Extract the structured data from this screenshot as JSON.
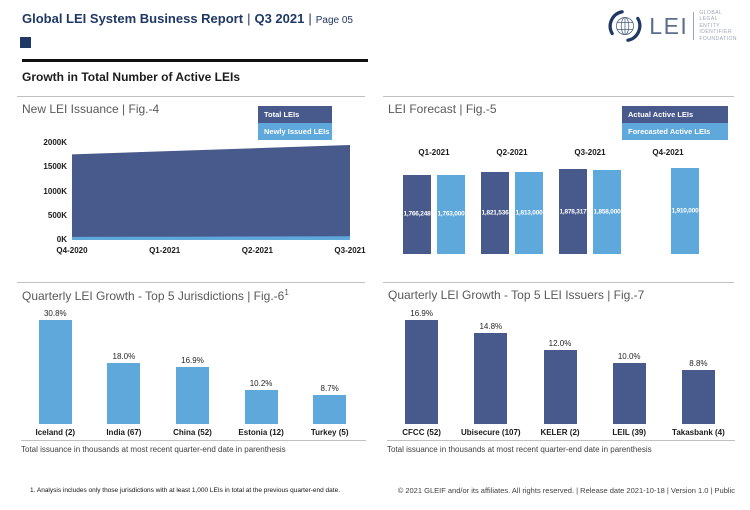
{
  "header": {
    "title": "Global LEI System Business Report",
    "separator": "|",
    "quarter": "Q3 2021",
    "page": "Page 05",
    "logo": {
      "wordmark": "LEI",
      "lines": [
        "GLOBAL",
        "LEGAL",
        "ENTITY",
        "IDENTIFIER",
        "FOUNDATION"
      ]
    }
  },
  "section": {
    "heading": "Growth in Total Number of Active LEIs"
  },
  "colors": {
    "navy": "#48598C",
    "light_blue": "#5FA8DC",
    "header_navy": "#1F3864",
    "panel_title_gray": "#595959"
  },
  "panels": {
    "fig4": {
      "title": "New LEI Issuance | Fig.-4"
    },
    "fig5": {
      "title": "LEI Forecast | Fig.-5"
    },
    "fig6": {
      "title": "Quarterly LEI Growth - Top 5 Jurisdictions | Fig.-6",
      "title_sup": "1",
      "note": "Total issuance in thousands at most recent quarter-end date in parenthesis"
    },
    "fig7": {
      "title": "Quarterly LEI Growth - Top 5 LEI Issuers | Fig.-7",
      "note": "Total issuance in thousands at most recent quarter-end date in parenthesis"
    }
  },
  "footer": {
    "footnote": "1. Analysis includes only those jurisdictions with at least 1,000 LEIs in total at the previous quarter-end date.",
    "copyright": "© 2021 GLEIF and/or its affiliates. All rights reserved. | Release date 2021-10-18 | Version 1.0 | Public"
  },
  "chart_data": [
    {
      "id": "fig4",
      "type": "area",
      "title": "New LEI Issuance | Fig.-4",
      "x": [
        "Q4-2020",
        "Q1-2021",
        "Q2-2021",
        "Q3-2021"
      ],
      "ylim": [
        0,
        2000000
      ],
      "yticks": [
        0,
        500000,
        1000000,
        1500000,
        2000000
      ],
      "ytick_labels": [
        "0K",
        "500K",
        "1000K",
        "1500K",
        "2000K"
      ],
      "legend_position": "top-right",
      "series": [
        {
          "name": "Total LEIs",
          "color": "#48598C",
          "values": [
            1766000,
            1830000,
            1894000,
            1958000
          ]
        },
        {
          "name": "Newly Issued LEIs",
          "color": "#5FA8DC",
          "values": [
            65000,
            68000,
            72000,
            78000
          ]
        }
      ]
    },
    {
      "id": "fig5",
      "type": "bar",
      "title": "LEI Forecast | Fig.-5",
      "categories": [
        "Q1-2021",
        "Q2-2021",
        "Q3-2021",
        "Q4-2021"
      ],
      "legend_position": "top-right",
      "series": [
        {
          "name": "Actual Active LEIs",
          "color": "#48598C",
          "values": [
            1766248,
            1821536,
            1878317,
            null
          ]
        },
        {
          "name": "Forecasted Active LEIs",
          "color": "#5FA8DC",
          "values": [
            1763000,
            1813000,
            1858000,
            1910000
          ]
        }
      ],
      "data_labels": [
        "1,766,248",
        "1,763,000",
        "1,821,536",
        "1,813,000",
        "1,878,317",
        "1,858,000",
        "1,910,000"
      ]
    },
    {
      "id": "fig6",
      "type": "bar",
      "title": "Quarterly LEI Growth - Top 5 Jurisdictions | Fig.-6",
      "categories": [
        "Iceland (2)",
        "India (67)",
        "China (52)",
        "Estonia (12)",
        "Turkey (5)"
      ],
      "values": [
        30.8,
        18.0,
        16.9,
        10.2,
        8.7
      ],
      "labels": [
        "30.8%",
        "18.0%",
        "16.9%",
        "10.2%",
        "8.7%"
      ],
      "color": "#5FA8DC"
    },
    {
      "id": "fig7",
      "type": "bar",
      "title": "Quarterly LEI Growth - Top 5 LEI Issuers | Fig.-7",
      "categories": [
        "CFCC (52)",
        "Ubisecure (107)",
        "KELER (2)",
        "LEIL (39)",
        "Takasbank (4)"
      ],
      "values": [
        16.9,
        14.8,
        12.0,
        10.0,
        8.8
      ],
      "labels": [
        "16.9%",
        "14.8%",
        "12.0%",
        "10.0%",
        "8.8%"
      ],
      "color": "#48598C"
    }
  ]
}
